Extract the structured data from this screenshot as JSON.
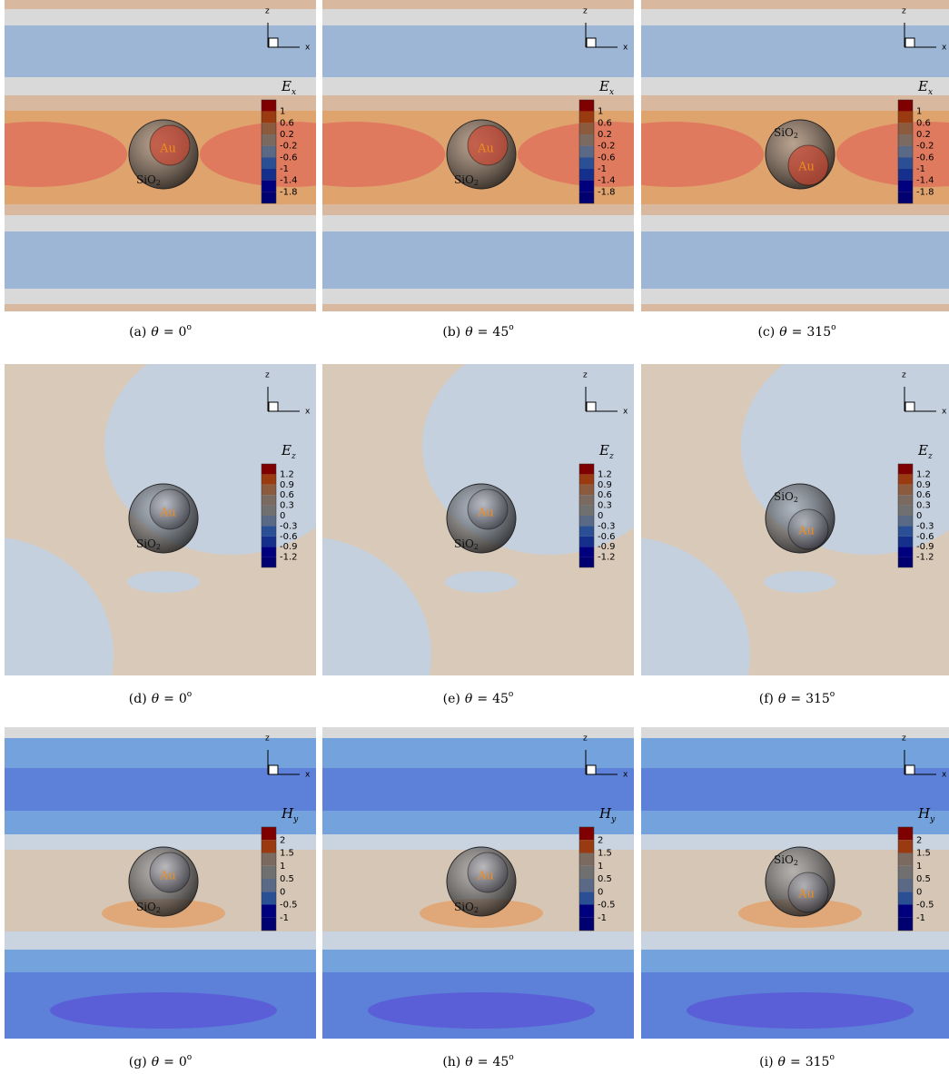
{
  "axes": {
    "z": "z",
    "x": "x"
  },
  "sphere": {
    "core": "Au",
    "shell": "SiO",
    "shell_sub": "2"
  },
  "caption": {
    "var": "θ",
    "op": "=",
    "sup": "o"
  },
  "rows": [
    {
      "field": {
        "symbol": "E",
        "sub": "x"
      },
      "levels": [
        "1",
        "0.6",
        "0.2",
        "-0.2",
        "-0.6",
        "-1",
        "-1.4",
        "-1.8"
      ],
      "panels": [
        {
          "tag": "(a)",
          "angle": "0"
        },
        {
          "tag": "(b)",
          "angle": "45"
        },
        {
          "tag": "(c)",
          "angle": "315"
        }
      ]
    },
    {
      "field": {
        "symbol": "E",
        "sub": "z"
      },
      "levels": [
        "1.2",
        "0.9",
        "0.6",
        "0.3",
        "0",
        "-0.3",
        "-0.6",
        "-0.9",
        "-1.2"
      ],
      "panels": [
        {
          "tag": "(d)",
          "angle": "0"
        },
        {
          "tag": "(e)",
          "angle": "45"
        },
        {
          "tag": "(f)",
          "angle": "315"
        }
      ]
    },
    {
      "field": {
        "symbol": "H",
        "sub": "y"
      },
      "levels": [
        "2",
        "1.5",
        "1",
        "0.5",
        "0",
        "-0.5",
        "-1"
      ],
      "panels": [
        {
          "tag": "(g)",
          "angle": "0"
        },
        {
          "tag": "(h)",
          "angle": "45"
        },
        {
          "tag": "(i)",
          "angle": "315"
        }
      ]
    }
  ]
}
